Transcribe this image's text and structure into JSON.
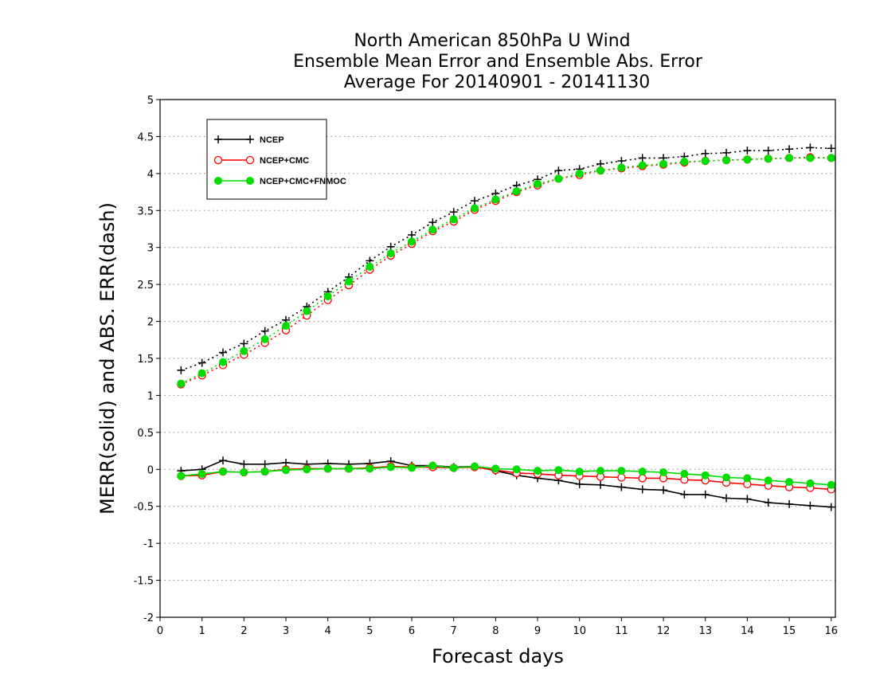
{
  "chart_data": {
    "type": "line",
    "title": [
      "North American 850hPa U Wind",
      "Ensemble Mean Error and Ensemble Abs. Error",
      "Average For 20140901 - 20141130"
    ],
    "xlabel": "Forecast days",
    "ylabel": "MERR(solid) and ABS. ERR(dash)",
    "xlim": [
      0,
      16.1
    ],
    "ylim": [
      -2,
      5
    ],
    "x_ticks": [
      "0",
      "1",
      "2",
      "3",
      "4",
      "5",
      "6",
      "7",
      "8",
      "9",
      "10",
      "11",
      "12",
      "13",
      "14",
      "15",
      "16"
    ],
    "y_ticks": [
      "5",
      "4.5",
      "4",
      "3.5",
      "3",
      "2.5",
      "2",
      "1.5",
      "1",
      "0.5",
      "0",
      "-0.5",
      "-1",
      "-1.5",
      "-2"
    ],
    "y_tick_values": [
      5,
      4.5,
      4,
      3.5,
      3,
      2.5,
      2,
      1.5,
      1,
      0.5,
      0,
      -0.5,
      -1,
      -1.5,
      -2
    ],
    "grid": "horizontal dotted",
    "legend_position": "top-left",
    "x": [
      0.5,
      1,
      1.5,
      2,
      2.5,
      3,
      3.5,
      4,
      4.5,
      5,
      5.5,
      6,
      6.5,
      7,
      7.5,
      8,
      8.5,
      9,
      9.5,
      10,
      10.5,
      11,
      11.5,
      12,
      12.5,
      13,
      13.5,
      14,
      14.5,
      15,
      15.5,
      16
    ],
    "series": [
      {
        "name": "NCEP",
        "color": "#000000",
        "marker": "plus",
        "merr": [
          -0.02,
          0.0,
          0.12,
          0.07,
          0.07,
          0.09,
          0.07,
          0.08,
          0.07,
          0.08,
          0.11,
          0.05,
          0.05,
          0.03,
          0.04,
          -0.02,
          -0.08,
          -0.12,
          -0.15,
          -0.2,
          -0.21,
          -0.24,
          -0.27,
          -0.28,
          -0.34,
          -0.34,
          -0.39,
          -0.4,
          -0.45,
          -0.47,
          -0.49,
          -0.51
        ],
        "abs_err": [
          1.34,
          1.44,
          1.58,
          1.7,
          1.87,
          2.02,
          2.2,
          2.4,
          2.6,
          2.82,
          3.01,
          3.17,
          3.34,
          3.48,
          3.63,
          3.73,
          3.84,
          3.92,
          4.04,
          4.06,
          4.13,
          4.17,
          4.21,
          4.21,
          4.23,
          4.27,
          4.28,
          4.31,
          4.31,
          4.33,
          4.35,
          4.34
        ]
      },
      {
        "name": "NCEP+CMC",
        "color": "#ff0000",
        "marker": "open-circle",
        "merr": [
          -0.09,
          -0.08,
          -0.03,
          -0.04,
          -0.03,
          0.0,
          0.01,
          0.01,
          0.01,
          0.02,
          0.04,
          0.03,
          0.03,
          0.02,
          0.03,
          -0.01,
          -0.05,
          -0.06,
          -0.08,
          -0.09,
          -0.1,
          -0.11,
          -0.12,
          -0.12,
          -0.14,
          -0.15,
          -0.18,
          -0.2,
          -0.22,
          -0.24,
          -0.25,
          -0.27
        ],
        "abs_err": [
          1.15,
          1.27,
          1.41,
          1.55,
          1.71,
          1.88,
          2.08,
          2.29,
          2.49,
          2.7,
          2.89,
          3.05,
          3.22,
          3.35,
          3.51,
          3.63,
          3.75,
          3.84,
          3.93,
          3.98,
          4.04,
          4.07,
          4.1,
          4.12,
          4.15,
          4.17,
          4.18,
          4.19,
          4.2,
          4.21,
          4.22,
          4.21
        ]
      },
      {
        "name": "NCEP+CMC+FNMOC",
        "color": "#00dd00",
        "marker": "filled-circle",
        "merr": [
          -0.09,
          -0.06,
          -0.03,
          -0.04,
          -0.03,
          -0.01,
          0.0,
          0.01,
          0.01,
          0.01,
          0.03,
          0.02,
          0.05,
          0.02,
          0.04,
          0.01,
          0.0,
          -0.02,
          -0.01,
          -0.03,
          -0.02,
          -0.02,
          -0.03,
          -0.04,
          -0.06,
          -0.08,
          -0.11,
          -0.12,
          -0.15,
          -0.17,
          -0.19,
          -0.21
        ],
        "abs_err": [
          1.16,
          1.3,
          1.45,
          1.6,
          1.76,
          1.94,
          2.14,
          2.34,
          2.54,
          2.74,
          2.92,
          3.08,
          3.24,
          3.38,
          3.53,
          3.65,
          3.76,
          3.86,
          3.93,
          4.0,
          4.04,
          4.08,
          4.11,
          4.13,
          4.16,
          4.17,
          4.18,
          4.19,
          4.2,
          4.21,
          4.21,
          4.21
        ]
      }
    ]
  }
}
